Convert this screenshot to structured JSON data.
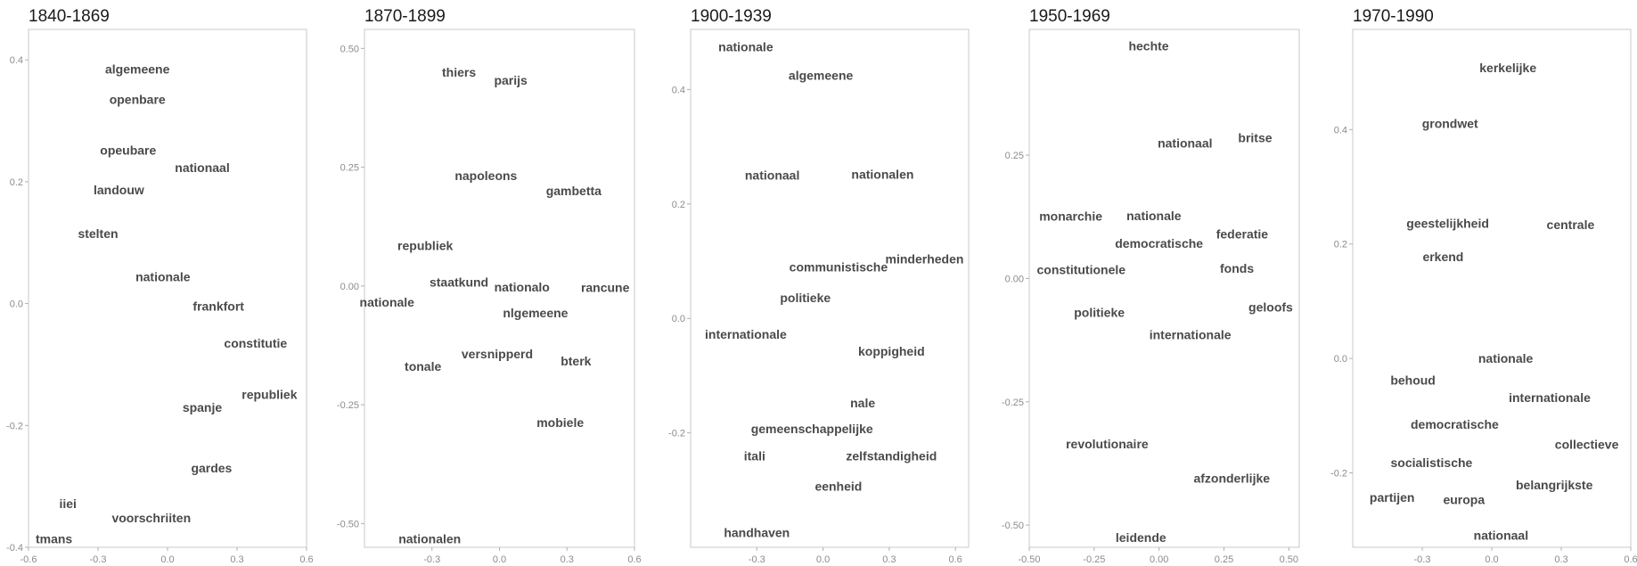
{
  "chart_data": [
    {
      "type": "scatter",
      "title": "1840-1869",
      "xlim": [
        -0.6,
        0.6
      ],
      "ylim": [
        -0.4,
        0.45
      ],
      "xticks": [
        -0.6,
        -0.3,
        0.0,
        0.3,
        0.6
      ],
      "xtick_labels": [
        "-0.6",
        "-0.3",
        "0.0",
        "0.3",
        "0.6"
      ],
      "yticks": [
        -0.4,
        -0.2,
        0.0,
        0.2,
        0.4
      ],
      "ytick_labels": [
        "-0.4",
        "-0.2",
        "0.0",
        "0.2",
        "0.4"
      ],
      "grid": false,
      "points": [
        {
          "label": "algemeene",
          "x": -0.13,
          "y": 0.385
        },
        {
          "label": "openbare",
          "x": -0.13,
          "y": 0.335
        },
        {
          "label": "opeubare",
          "x": -0.17,
          "y": 0.252
        },
        {
          "label": "nationaal",
          "x": 0.15,
          "y": 0.223
        },
        {
          "label": "landouw",
          "x": -0.21,
          "y": 0.187
        },
        {
          "label": "stelten",
          "x": -0.3,
          "y": 0.115
        },
        {
          "label": "nationale",
          "x": -0.02,
          "y": 0.044
        },
        {
          "label": "frankfort",
          "x": 0.22,
          "y": -0.004
        },
        {
          "label": "constitutie",
          "x": 0.38,
          "y": -0.065
        },
        {
          "label": "republiek",
          "x": 0.44,
          "y": -0.149
        },
        {
          "label": "spanje",
          "x": 0.15,
          "y": -0.17
        },
        {
          "label": "gardes",
          "x": 0.19,
          "y": -0.27
        },
        {
          "label": "iiei",
          "x": -0.43,
          "y": -0.328
        },
        {
          "label": "voorschriiten",
          "x": -0.07,
          "y": -0.352
        },
        {
          "label": "tmans",
          "x": -0.49,
          "y": -0.386
        }
      ]
    },
    {
      "type": "scatter",
      "title": "1870-1899",
      "xlim": [
        -0.6,
        0.6
      ],
      "ylim": [
        -0.55,
        0.54
      ],
      "xticks": [
        -0.3,
        0.0,
        0.3,
        0.6
      ],
      "xtick_labels": [
        "-0.3",
        "0.0",
        "0.3",
        "0.6"
      ],
      "yticks": [
        -0.5,
        -0.25,
        0.0,
        0.25,
        0.5
      ],
      "ytick_labels": [
        "-0.50",
        "-0.25",
        "0.00",
        "0.25",
        "0.50"
      ],
      "grid": false,
      "points": [
        {
          "label": "thiers",
          "x": -0.18,
          "y": 0.45
        },
        {
          "label": "parijs",
          "x": 0.05,
          "y": 0.433
        },
        {
          "label": "napoleons",
          "x": -0.06,
          "y": 0.232
        },
        {
          "label": "gambetta",
          "x": 0.33,
          "y": 0.2
        },
        {
          "label": "republiek",
          "x": -0.33,
          "y": 0.085
        },
        {
          "label": "staatkund",
          "x": -0.18,
          "y": 0.008
        },
        {
          "label": "nationalo",
          "x": 0.1,
          "y": -0.002
        },
        {
          "label": "rancune",
          "x": 0.47,
          "y": -0.003
        },
        {
          "label": "nationale",
          "x": -0.5,
          "y": -0.034
        },
        {
          "label": "nlgemeene",
          "x": 0.16,
          "y": -0.057
        },
        {
          "label": "versnipperd",
          "x": -0.01,
          "y": -0.143
        },
        {
          "label": "bterk",
          "x": 0.34,
          "y": -0.158
        },
        {
          "label": "tonale",
          "x": -0.34,
          "y": -0.169
        },
        {
          "label": "mobiele",
          "x": 0.27,
          "y": -0.287
        },
        {
          "label": "nationalen",
          "x": -0.31,
          "y": -0.532
        }
      ]
    },
    {
      "type": "scatter",
      "title": "1900-1939",
      "xlim": [
        -0.6,
        0.66
      ],
      "ylim": [
        -0.4,
        0.505
      ],
      "xticks": [
        -0.3,
        0.0,
        0.3,
        0.6
      ],
      "xtick_labels": [
        "-0.3",
        "0.0",
        "0.3",
        "0.6"
      ],
      "yticks": [
        -0.2,
        0.0,
        0.2,
        0.4
      ],
      "ytick_labels": [
        "-0.2",
        "0.0",
        "0.2",
        "0.4"
      ],
      "grid": false,
      "points": [
        {
          "label": "nationale",
          "x": -0.35,
          "y": 0.475
        },
        {
          "label": "algemeene",
          "x": -0.01,
          "y": 0.425
        },
        {
          "label": "nationaal",
          "x": -0.23,
          "y": 0.25
        },
        {
          "label": "nationalen",
          "x": 0.27,
          "y": 0.252
        },
        {
          "label": "minderheden",
          "x": 0.46,
          "y": 0.104
        },
        {
          "label": "communistische",
          "x": 0.07,
          "y": 0.09
        },
        {
          "label": "politieke",
          "x": -0.08,
          "y": 0.036
        },
        {
          "label": "internationale",
          "x": -0.35,
          "y": -0.028
        },
        {
          "label": "koppigheid",
          "x": 0.31,
          "y": -0.057
        },
        {
          "label": "nale",
          "x": 0.18,
          "y": -0.148
        },
        {
          "label": "gemeenschappelijke",
          "x": -0.05,
          "y": -0.193
        },
        {
          "label": "itali",
          "x": -0.31,
          "y": -0.24
        },
        {
          "label": "zelfstandigheid",
          "x": 0.31,
          "y": -0.24
        },
        {
          "label": "eenheid",
          "x": 0.07,
          "y": -0.293
        },
        {
          "label": "handhaven",
          "x": -0.3,
          "y": -0.374
        }
      ]
    },
    {
      "type": "scatter",
      "title": "1950-1969",
      "xlim": [
        -0.5,
        0.54
      ],
      "ylim": [
        -0.545,
        0.505
      ],
      "xticks": [
        -0.5,
        -0.25,
        0.0,
        0.25,
        0.5
      ],
      "xtick_labels": [
        "-0.50",
        "-0.25",
        "0.00",
        "0.25",
        "0.50"
      ],
      "yticks": [
        -0.5,
        -0.25,
        0.0,
        0.25
      ],
      "ytick_labels": [
        "-0.50",
        "-0.25",
        "0.00",
        "0.25"
      ],
      "grid": false,
      "points": [
        {
          "label": "hechte",
          "x": -0.04,
          "y": 0.472
        },
        {
          "label": "nationaal",
          "x": 0.1,
          "y": 0.275
        },
        {
          "label": "britse",
          "x": 0.37,
          "y": 0.285
        },
        {
          "label": "monarchie",
          "x": -0.34,
          "y": 0.126
        },
        {
          "label": "nationale",
          "x": -0.02,
          "y": 0.127
        },
        {
          "label": "federatie",
          "x": 0.32,
          "y": 0.09
        },
        {
          "label": "democratische",
          "x": 0.0,
          "y": 0.071
        },
        {
          "label": "constitutionele",
          "x": -0.3,
          "y": 0.018
        },
        {
          "label": "fonds",
          "x": 0.3,
          "y": 0.021
        },
        {
          "label": "geloofs",
          "x": 0.43,
          "y": -0.058
        },
        {
          "label": "politieke",
          "x": -0.23,
          "y": -0.069
        },
        {
          "label": "internationale",
          "x": 0.12,
          "y": -0.114
        },
        {
          "label": "revolutionaire",
          "x": -0.2,
          "y": -0.335
        },
        {
          "label": "afzonderlijke",
          "x": 0.28,
          "y": -0.405
        },
        {
          "label": "leidende",
          "x": -0.07,
          "y": -0.525
        }
      ]
    },
    {
      "type": "scatter",
      "title": "1970-1990",
      "xlim": [
        -0.6,
        0.6
      ],
      "ylim": [
        -0.33,
        0.575
      ],
      "xticks": [
        -0.3,
        0.0,
        0.3,
        0.6
      ],
      "xtick_labels": [
        "-0.3",
        "0.0",
        "0.3",
        "0.6"
      ],
      "yticks": [
        -0.2,
        0.0,
        0.2,
        0.4
      ],
      "ytick_labels": [
        "-0.2",
        "0.0",
        "0.2",
        "0.4"
      ],
      "grid": false,
      "points": [
        {
          "label": "kerkelijke",
          "x": 0.07,
          "y": 0.508
        },
        {
          "label": "grondwet",
          "x": -0.18,
          "y": 0.411
        },
        {
          "label": "geestelijkheid",
          "x": -0.19,
          "y": 0.236
        },
        {
          "label": "centrale",
          "x": 0.34,
          "y": 0.234
        },
        {
          "label": "erkend",
          "x": -0.21,
          "y": 0.178
        },
        {
          "label": "nationale",
          "x": 0.06,
          "y": 0.0
        },
        {
          "label": "behoud",
          "x": -0.34,
          "y": -0.038
        },
        {
          "label": "internationale",
          "x": 0.25,
          "y": -0.068
        },
        {
          "label": "democratische",
          "x": -0.16,
          "y": -0.115
        },
        {
          "label": "collectieve",
          "x": 0.41,
          "y": -0.15
        },
        {
          "label": "socialistische",
          "x": -0.26,
          "y": -0.182
        },
        {
          "label": "belangrijkste",
          "x": 0.27,
          "y": -0.221
        },
        {
          "label": "partijen",
          "x": -0.43,
          "y": -0.243
        },
        {
          "label": "europa",
          "x": -0.12,
          "y": -0.247
        },
        {
          "label": "nationaal",
          "x": 0.04,
          "y": -0.309
        }
      ]
    }
  ]
}
